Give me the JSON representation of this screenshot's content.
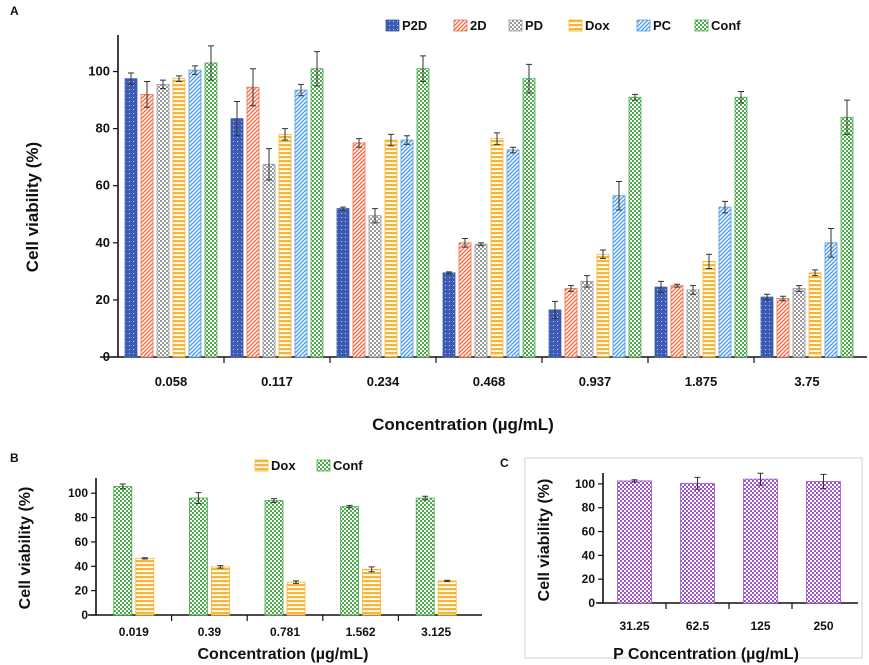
{
  "chart_data": [
    {
      "panel_label": "A",
      "type": "bar",
      "title": "",
      "xlabel": "Concentration (µg/mL)",
      "ylabel": "Cell viability (%)",
      "ylim": [
        0,
        110
      ],
      "yticks": [
        0,
        20,
        40,
        60,
        80,
        100
      ],
      "legend_position": "top-right",
      "grid": false,
      "categories": [
        "0.058",
        "0.117",
        "0.234",
        "0.468",
        "0.937",
        "1.875",
        "3.75"
      ],
      "series": [
        {
          "name": "P2D",
          "color": "#3b5bb5",
          "pattern": "dots",
          "values": [
            97.5,
            83.5,
            52,
            29.5,
            16.5,
            24.5,
            21
          ],
          "errors": [
            2,
            6,
            0.5,
            0.3,
            3,
            2,
            1
          ]
        },
        {
          "name": "2D",
          "color": "#e8714a",
          "pattern": "diagonal",
          "values": [
            92,
            94.5,
            75,
            40,
            24,
            25,
            20.5
          ],
          "errors": [
            4.5,
            6.5,
            1.5,
            1.5,
            1,
            0.5,
            0.8
          ]
        },
        {
          "name": "PD",
          "color": "#9a9a9a",
          "pattern": "check",
          "values": [
            95.5,
            67.5,
            49.5,
            39.5,
            26.5,
            23.5,
            24
          ],
          "errors": [
            1.5,
            5.5,
            2.5,
            0.5,
            2,
            1.5,
            1
          ]
        },
        {
          "name": "Dox",
          "color": "#f7b531",
          "pattern": "horizontal",
          "values": [
            97.5,
            78,
            76,
            76.5,
            36,
            33.5,
            29.5
          ],
          "errors": [
            1,
            2,
            2,
            2,
            1.5,
            2.5,
            1
          ]
        },
        {
          "name": "PC",
          "color": "#4f9fe0",
          "pattern": "diagonal",
          "values": [
            100.5,
            93.5,
            76,
            72.5,
            56.5,
            52.5,
            40
          ],
          "errors": [
            1.5,
            2,
            1.5,
            1,
            5,
            2,
            5
          ]
        },
        {
          "name": "Conf",
          "color": "#4bab4b",
          "pattern": "check",
          "values": [
            103,
            101,
            101,
            97.5,
            91,
            91,
            84
          ],
          "errors": [
            6,
            6,
            4.5,
            5,
            1,
            2,
            6
          ]
        }
      ]
    },
    {
      "panel_label": "B",
      "type": "bar",
      "title": "",
      "xlabel": "Concentration (µg/mL)",
      "ylabel": "Cell viability (%)",
      "ylim": [
        0,
        110
      ],
      "yticks": [
        0,
        20,
        40,
        60,
        80,
        100
      ],
      "legend_position": "top",
      "grid": false,
      "categories": [
        "0.019",
        "0.39",
        "0.781",
        "1.562",
        "3.125"
      ],
      "series": [
        {
          "name": "Conf",
          "color": "#4bab4b",
          "pattern": "check",
          "values": [
            105.5,
            96,
            94,
            89,
            96
          ],
          "errors": [
            2,
            4.5,
            1.5,
            1,
            1.5
          ]
        },
        {
          "name": "Dox",
          "color": "#f7b531",
          "pattern": "horizontal",
          "values": [
            46.5,
            39.5,
            27,
            37.5,
            28
          ],
          "errors": [
            0.5,
            1,
            1,
            2,
            0.5
          ]
        }
      ],
      "legend_order": [
        "Dox",
        "Conf"
      ]
    },
    {
      "panel_label": "C",
      "type": "bar",
      "title": "",
      "xlabel": "P Concentration (µg/mL)",
      "ylabel": "Cell viability (%)",
      "ylim": [
        0,
        110
      ],
      "yticks": [
        0,
        20,
        40,
        60,
        80,
        100
      ],
      "grid": false,
      "categories": [
        "31.25",
        "62.5",
        "125",
        "250"
      ],
      "series": [
        {
          "name": "",
          "color": "#9c55c9",
          "pattern": "check",
          "values": [
            102.5,
            100.5,
            104,
            102
          ],
          "errors": [
            1,
            5,
            5,
            6
          ]
        }
      ]
    }
  ]
}
